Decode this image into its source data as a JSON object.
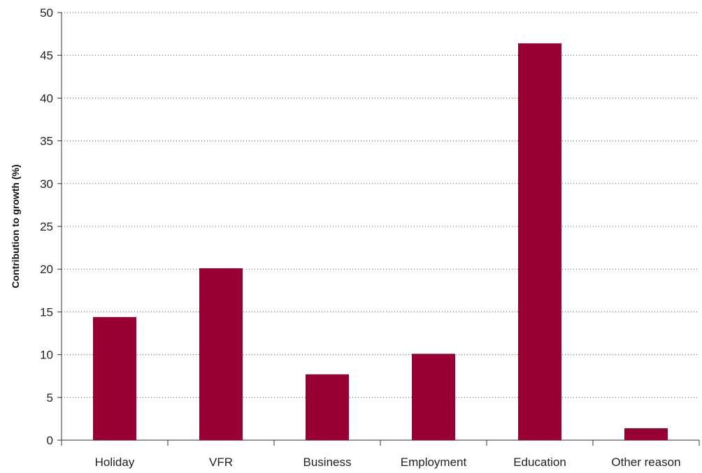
{
  "chart_data": {
    "type": "bar",
    "title": "",
    "xlabel": "",
    "ylabel": "Contribution to growth (%)",
    "categories": [
      "Holiday",
      "VFR",
      "Business",
      "Employment",
      "Education",
      "Other reason"
    ],
    "values": [
      14.4,
      20.1,
      7.7,
      10.1,
      46.4,
      1.4
    ],
    "ylim": [
      0,
      50
    ],
    "yticks": [
      0,
      5,
      10,
      15,
      20,
      25,
      30,
      35,
      40,
      45,
      50
    ],
    "grid": true,
    "bar_color": "#990033"
  }
}
